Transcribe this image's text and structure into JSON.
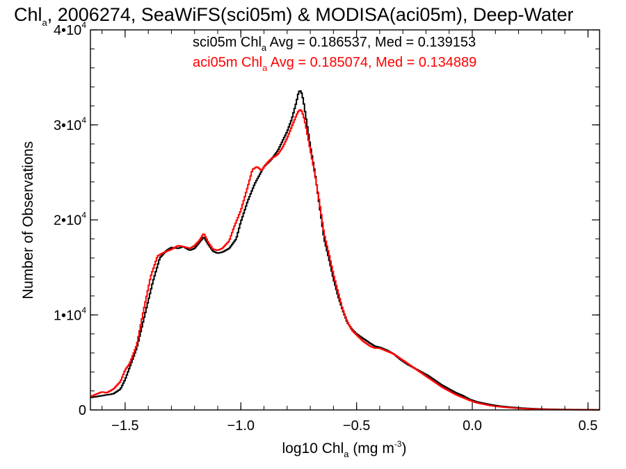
{
  "chart_data": {
    "type": "line",
    "title": {
      "main": "Chl",
      "sub": "a",
      "rest": ", 2006274, SeaWiFS(sci05m) & MODISA(aci05m), Deep-Water"
    },
    "xlabel": {
      "pre": "log10 Chl",
      "sub": "a",
      "mid": " (mg m",
      "sup": "-3",
      "post": ")"
    },
    "ylabel": "Number of Observations",
    "xlim": [
      -1.65,
      0.55
    ],
    "ylim": [
      0,
      40000
    ],
    "x_ticks": [
      {
        "value": -1.5,
        "label": "−1.5"
      },
      {
        "value": -1.0,
        "label": "−1.0"
      },
      {
        "value": -0.5,
        "label": "−0.5"
      },
      {
        "value": 0.0,
        "label": "0.0"
      },
      {
        "value": 0.5,
        "label": "0.5"
      }
    ],
    "y_ticks": [
      {
        "value": 0,
        "base": "0",
        "exp": ""
      },
      {
        "value": 10000,
        "base": "1•10",
        "exp": "4"
      },
      {
        "value": 20000,
        "base": "2•10",
        "exp": "4"
      },
      {
        "value": 30000,
        "base": "3•10",
        "exp": "4"
      },
      {
        "value": 40000,
        "base": "4•10",
        "exp": "4"
      }
    ],
    "x_minor_step": 0.1,
    "y_minor_step": 2000,
    "series": [
      {
        "id": "sci05m",
        "color": "#000000",
        "legend": {
          "pre": "sci05m Chl",
          "sub": "a",
          "post": " Avg = 0.186537, Med = 0.139153"
        },
        "points": [
          [
            -1.65,
            1300
          ],
          [
            -1.6,
            1500
          ],
          [
            -1.55,
            1700
          ],
          [
            -1.52,
            2200
          ],
          [
            -1.5,
            3200
          ],
          [
            -1.48,
            4500
          ],
          [
            -1.45,
            6500
          ],
          [
            -1.42,
            9500
          ],
          [
            -1.38,
            13500
          ],
          [
            -1.35,
            16000
          ],
          [
            -1.32,
            16800
          ],
          [
            -1.3,
            17100
          ],
          [
            -1.27,
            17000
          ],
          [
            -1.25,
            17200
          ],
          [
            -1.22,
            16800
          ],
          [
            -1.2,
            17000
          ],
          [
            -1.18,
            17600
          ],
          [
            -1.16,
            18200
          ],
          [
            -1.14,
            17400
          ],
          [
            -1.12,
            16700
          ],
          [
            -1.1,
            16500
          ],
          [
            -1.08,
            16600
          ],
          [
            -1.05,
            17000
          ],
          [
            -1.02,
            18000
          ],
          [
            -1.0,
            19800
          ],
          [
            -0.97,
            22000
          ],
          [
            -0.94,
            23800
          ],
          [
            -0.92,
            24700
          ],
          [
            -0.9,
            25600
          ],
          [
            -0.87,
            26300
          ],
          [
            -0.84,
            27300
          ],
          [
            -0.82,
            28300
          ],
          [
            -0.8,
            29300
          ],
          [
            -0.78,
            30600
          ],
          [
            -0.76,
            32400
          ],
          [
            -0.75,
            33500
          ],
          [
            -0.74,
            33600
          ],
          [
            -0.73,
            32600
          ],
          [
            -0.72,
            31000
          ],
          [
            -0.7,
            27800
          ],
          [
            -0.68,
            25000
          ],
          [
            -0.66,
            21500
          ],
          [
            -0.64,
            18000
          ],
          [
            -0.62,
            16000
          ],
          [
            -0.6,
            13800
          ],
          [
            -0.58,
            12000
          ],
          [
            -0.56,
            10500
          ],
          [
            -0.54,
            9200
          ],
          [
            -0.52,
            8500
          ],
          [
            -0.5,
            8000
          ],
          [
            -0.47,
            7500
          ],
          [
            -0.44,
            7000
          ],
          [
            -0.42,
            6700
          ],
          [
            -0.4,
            6600
          ],
          [
            -0.37,
            6300
          ],
          [
            -0.34,
            5900
          ],
          [
            -0.31,
            5300
          ],
          [
            -0.28,
            4800
          ],
          [
            -0.25,
            4400
          ],
          [
            -0.22,
            4000
          ],
          [
            -0.19,
            3600
          ],
          [
            -0.16,
            3100
          ],
          [
            -0.13,
            2600
          ],
          [
            -0.1,
            2200
          ],
          [
            -0.07,
            1800
          ],
          [
            -0.04,
            1500
          ],
          [
            -0.01,
            1100
          ],
          [
            0.02,
            850
          ],
          [
            0.05,
            700
          ],
          [
            0.08,
            550
          ],
          [
            0.12,
            400
          ],
          [
            0.16,
            300
          ],
          [
            0.2,
            220
          ],
          [
            0.25,
            150
          ],
          [
            0.3,
            100
          ],
          [
            0.35,
            70
          ],
          [
            0.4,
            50
          ],
          [
            0.45,
            35
          ],
          [
            0.5,
            25
          ],
          [
            0.55,
            20
          ]
        ]
      },
      {
        "id": "aci05m",
        "color": "#ff0000",
        "legend": {
          "pre": "aci05m Chl",
          "sub": "a",
          "post": " Avg = 0.185074, Med = 0.134889"
        },
        "points": [
          [
            -1.65,
            1400
          ],
          [
            -1.62,
            1700
          ],
          [
            -1.6,
            1900
          ],
          [
            -1.58,
            1800
          ],
          [
            -1.55,
            2200
          ],
          [
            -1.52,
            3000
          ],
          [
            -1.5,
            4200
          ],
          [
            -1.48,
            4900
          ],
          [
            -1.45,
            6800
          ],
          [
            -1.42,
            10500
          ],
          [
            -1.39,
            14000
          ],
          [
            -1.36,
            16200
          ],
          [
            -1.33,
            16600
          ],
          [
            -1.3,
            16900
          ],
          [
            -1.27,
            17300
          ],
          [
            -1.25,
            17200
          ],
          [
            -1.22,
            17000
          ],
          [
            -1.2,
            17300
          ],
          [
            -1.18,
            17800
          ],
          [
            -1.16,
            18600
          ],
          [
            -1.14,
            17600
          ],
          [
            -1.12,
            16900
          ],
          [
            -1.1,
            16800
          ],
          [
            -1.08,
            17000
          ],
          [
            -1.05,
            17800
          ],
          [
            -1.03,
            19200
          ],
          [
            -1.0,
            21000
          ],
          [
            -0.97,
            23500
          ],
          [
            -0.95,
            25300
          ],
          [
            -0.93,
            25600
          ],
          [
            -0.91,
            25200
          ],
          [
            -0.89,
            25900
          ],
          [
            -0.87,
            26400
          ],
          [
            -0.84,
            26900
          ],
          [
            -0.82,
            27600
          ],
          [
            -0.8,
            28600
          ],
          [
            -0.78,
            29800
          ],
          [
            -0.76,
            31000
          ],
          [
            -0.75,
            31500
          ],
          [
            -0.74,
            31600
          ],
          [
            -0.73,
            31000
          ],
          [
            -0.72,
            30000
          ],
          [
            -0.7,
            27400
          ],
          [
            -0.68,
            24800
          ],
          [
            -0.66,
            21800
          ],
          [
            -0.64,
            18500
          ],
          [
            -0.62,
            16500
          ],
          [
            -0.6,
            14300
          ],
          [
            -0.58,
            12400
          ],
          [
            -0.56,
            10600
          ],
          [
            -0.54,
            9300
          ],
          [
            -0.52,
            8400
          ],
          [
            -0.5,
            7900
          ],
          [
            -0.47,
            7200
          ],
          [
            -0.44,
            6700
          ],
          [
            -0.42,
            6500
          ],
          [
            -0.4,
            6500
          ],
          [
            -0.37,
            6200
          ],
          [
            -0.34,
            5900
          ],
          [
            -0.31,
            5400
          ],
          [
            -0.28,
            4900
          ],
          [
            -0.25,
            4400
          ],
          [
            -0.22,
            3900
          ],
          [
            -0.19,
            3400
          ],
          [
            -0.16,
            2900
          ],
          [
            -0.13,
            2400
          ],
          [
            -0.1,
            2000
          ],
          [
            -0.07,
            1600
          ],
          [
            -0.04,
            1300
          ],
          [
            -0.01,
            1000
          ],
          [
            0.02,
            750
          ],
          [
            0.05,
            600
          ],
          [
            0.08,
            450
          ],
          [
            0.12,
            330
          ],
          [
            0.16,
            240
          ],
          [
            0.2,
            170
          ],
          [
            0.25,
            110
          ],
          [
            0.3,
            70
          ],
          [
            0.35,
            45
          ],
          [
            0.4,
            30
          ],
          [
            0.45,
            20
          ],
          [
            0.5,
            15
          ],
          [
            0.55,
            10
          ]
        ]
      }
    ]
  }
}
